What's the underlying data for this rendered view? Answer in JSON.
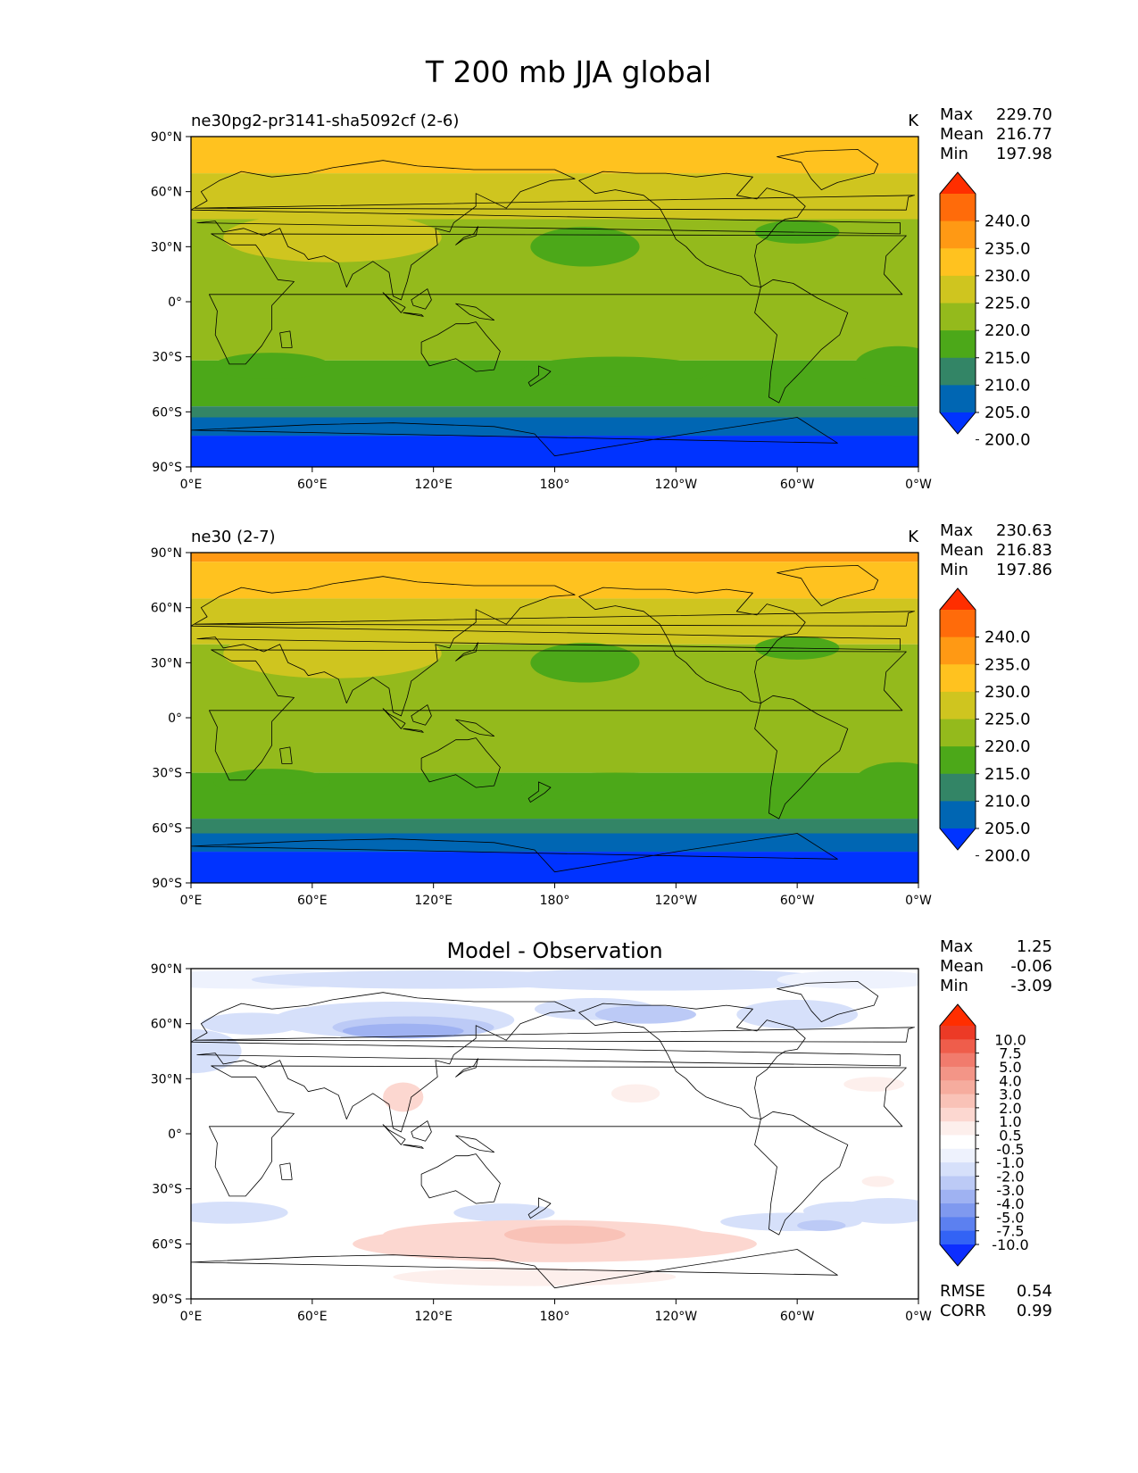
{
  "figure_title": "T 200 mb JJA global",
  "lon_ticks": [
    "0°E",
    "60°E",
    "120°E",
    "180°",
    "120°W",
    "60°W",
    "0°W"
  ],
  "lat_ticks": [
    "90°N",
    "60°N",
    "30°N",
    "0°",
    "30°S",
    "60°S",
    "90°S"
  ],
  "colors": {
    "field": [
      "#0033ff",
      "#0066b3",
      "#338566",
      "#4ca819",
      "#94ba1c",
      "#cfc51f",
      "#ffc21f",
      "#ff9914",
      "#ff6b0a",
      "#ff2e00"
    ],
    "diff": [
      "#0d2eff",
      "#3363f5",
      "#5c80f0",
      "#7f99ef",
      "#9fb2f2",
      "#bccaf6",
      "#d6e0fa",
      "#eef2fd",
      "#ffffff",
      "#fdefec",
      "#fcd7d0",
      "#f9c2b7",
      "#f6ac9e",
      "#f39587",
      "#f17b6d",
      "#ef5d4b",
      "#ec3a26",
      "#ff2e00"
    ]
  },
  "chart_data": [
    {
      "type": "heatmap",
      "title_left": "ne30pg2-pr3141-sha5092cf (2-6)",
      "units": "K",
      "stats": {
        "labels": [
          "Max",
          "Mean",
          "Min"
        ],
        "values": [
          "229.70",
          "216.77",
          "197.98"
        ]
      },
      "colorbar_levels": [
        "240.0",
        "235.0",
        "230.0",
        "225.0",
        "220.0",
        "215.0",
        "210.0",
        "205.0",
        "200.0"
      ],
      "xlim": [
        0,
        360
      ],
      "ylim": [
        -90,
        90
      ],
      "bands": [
        {
          "lat_from": 90,
          "lat_to": 70,
          "range": "225-230"
        },
        {
          "lat_from": 70,
          "lat_to": 45,
          "range": "220-225"
        },
        {
          "lat_from": 45,
          "lat_to": -32,
          "range": "215-220"
        },
        {
          "lat_from": -32,
          "lat_to": -57,
          "range": "210-215"
        },
        {
          "lat_from": -57,
          "lat_to": -63,
          "range": "205-210"
        },
        {
          "lat_from": -63,
          "lat_to": -73,
          "range": "200-205"
        },
        {
          "lat_from": -73,
          "lat_to": -90,
          "range": "<200"
        }
      ]
    },
    {
      "type": "heatmap",
      "title_left": "ne30 (2-7)",
      "units": "K",
      "stats": {
        "labels": [
          "Max",
          "Mean",
          "Min"
        ],
        "values": [
          "230.63",
          "216.83",
          "197.86"
        ]
      },
      "colorbar_levels": [
        "240.0",
        "235.0",
        "230.0",
        "225.0",
        "220.0",
        "215.0",
        "210.0",
        "205.0",
        "200.0"
      ],
      "xlim": [
        0,
        360
      ],
      "ylim": [
        -90,
        90
      ],
      "bands": [
        {
          "lat_from": 90,
          "lat_to": 85,
          "range": "230-235"
        },
        {
          "lat_from": 85,
          "lat_to": 65,
          "range": "225-230"
        },
        {
          "lat_from": 65,
          "lat_to": 40,
          "range": "220-225"
        },
        {
          "lat_from": 40,
          "lat_to": -30,
          "range": "215-220"
        },
        {
          "lat_from": -30,
          "lat_to": -55,
          "range": "210-215"
        },
        {
          "lat_from": -55,
          "lat_to": -63,
          "range": "205-210"
        },
        {
          "lat_from": -63,
          "lat_to": -73,
          "range": "200-205"
        },
        {
          "lat_from": -73,
          "lat_to": -90,
          "range": "<200"
        }
      ]
    },
    {
      "type": "heatmap",
      "title_center": "Model - Observation",
      "stats": {
        "labels": [
          "Max",
          "Mean",
          "Min"
        ],
        "values": [
          "1.25",
          "-0.06",
          "-3.09"
        ]
      },
      "colorbar_levels": [
        "10.0",
        "7.5",
        "5.0",
        "4.0",
        "3.0",
        "2.0",
        "1.0",
        "0.5",
        "-0.5",
        "-1.0",
        "-2.0",
        "-3.0",
        "-4.0",
        "-5.0",
        "-7.5",
        "-10.0"
      ],
      "metrics": {
        "labels": [
          "RMSE",
          "CORR"
        ],
        "values": [
          "0.54",
          "0.99"
        ]
      },
      "xlim": [
        0,
        360
      ],
      "ylim": [
        -90,
        90
      ]
    }
  ]
}
